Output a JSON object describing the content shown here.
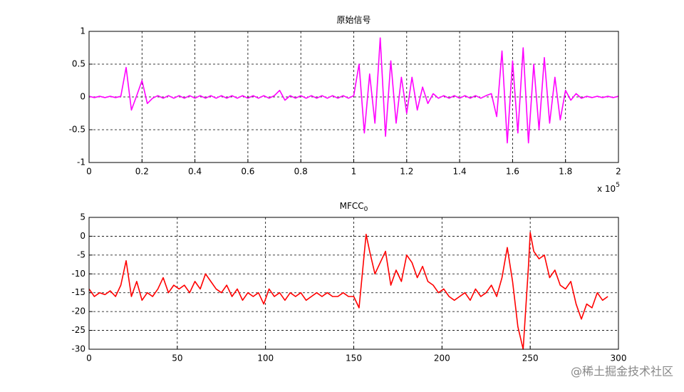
{
  "chart_data": [
    {
      "type": "line",
      "title": "原始信号",
      "x_multiplier": "x 10",
      "x_exponent": "5",
      "xlim": [
        0,
        200000
      ],
      "ylim": [
        -1,
        1
      ],
      "grid": true,
      "xticks": [
        0,
        {
          "value": 20000,
          "label": "0.2"
        },
        {
          "value": 40000,
          "label": "0.4"
        },
        {
          "value": 60000,
          "label": "0.6"
        },
        {
          "value": 80000,
          "label": "0.8"
        },
        {
          "value": 100000,
          "label": "1"
        },
        {
          "value": 120000,
          "label": "1.2"
        },
        {
          "value": 140000,
          "label": "1.4"
        },
        {
          "value": 160000,
          "label": "1.6"
        },
        {
          "value": 180000,
          "label": "1.8"
        },
        {
          "value": 200000,
          "label": "2"
        }
      ],
      "yticks": [
        -1,
        -0.5,
        0,
        0.5,
        1
      ],
      "x": [
        0,
        2000,
        4000,
        6000,
        8000,
        10000,
        12000,
        14000,
        16000,
        18000,
        20000,
        22000,
        24000,
        26000,
        28000,
        30000,
        32000,
        34000,
        36000,
        38000,
        40000,
        42000,
        44000,
        46000,
        48000,
        50000,
        52000,
        54000,
        56000,
        58000,
        60000,
        62000,
        64000,
        66000,
        68000,
        70000,
        72000,
        74000,
        76000,
        78000,
        80000,
        82000,
        84000,
        86000,
        88000,
        90000,
        92000,
        94000,
        96000,
        98000,
        100000,
        102000,
        104000,
        106000,
        108000,
        110000,
        112000,
        114000,
        116000,
        118000,
        120000,
        122000,
        124000,
        126000,
        128000,
        130000,
        132000,
        134000,
        136000,
        138000,
        140000,
        142000,
        144000,
        146000,
        148000,
        150000,
        152000,
        154000,
        156000,
        158000,
        160000,
        162000,
        164000,
        166000,
        168000,
        170000,
        172000,
        174000,
        176000,
        178000,
        180000,
        182000,
        184000,
        186000,
        188000,
        190000,
        192000,
        194000,
        196000,
        198000,
        200000
      ],
      "series": [
        {
          "name": null,
          "color": "#ff00ff",
          "values": [
            0.01,
            -0.01,
            0.01,
            -0.01,
            0.01,
            -0.01,
            0.01,
            0.45,
            -0.2,
            0.02,
            0.25,
            -0.1,
            -0.02,
            0.02,
            -0.02,
            0.02,
            -0.02,
            0.02,
            -0.02,
            0.02,
            -0.02,
            0.02,
            -0.02,
            0.02,
            -0.02,
            0.02,
            -0.02,
            0.02,
            -0.02,
            0.02,
            -0.02,
            0.02,
            -0.02,
            0.02,
            -0.02,
            0.02,
            0.1,
            -0.05,
            0.02,
            -0.02,
            0.02,
            -0.02,
            0.02,
            -0.02,
            0.02,
            -0.02,
            0.02,
            -0.02,
            0.02,
            -0.02,
            0.02,
            0.5,
            -0.55,
            0.35,
            -0.4,
            0.9,
            -0.6,
            0.55,
            -0.4,
            0.3,
            -0.25,
            0.3,
            -0.2,
            0.15,
            -0.1,
            0.05,
            -0.02,
            0.02,
            -0.02,
            0.02,
            -0.02,
            0.02,
            -0.02,
            0.02,
            -0.02,
            0.02,
            0.05,
            -0.3,
            0.7,
            -0.7,
            0.55,
            -0.55,
            0.75,
            -0.7,
            0.5,
            -0.5,
            0.6,
            -0.4,
            0.3,
            -0.35,
            0.1,
            -0.05,
            0.05,
            -0.02,
            0.01,
            -0.01,
            0.01,
            -0.01,
            0.01,
            -0.01,
            0.01
          ]
        }
      ]
    },
    {
      "type": "line",
      "title": "MFCC",
      "title_subscript": "0",
      "xlim": [
        0,
        300
      ],
      "ylim": [
        -30,
        5
      ],
      "grid": true,
      "xticks": [
        0,
        50,
        100,
        150,
        200,
        250,
        300
      ],
      "yticks": [
        -30,
        -25,
        -20,
        -15,
        -10,
        -5,
        0,
        5
      ],
      "x": [
        0,
        3,
        6,
        9,
        12,
        15,
        18,
        21,
        24,
        27,
        30,
        33,
        36,
        39,
        42,
        45,
        48,
        51,
        54,
        57,
        60,
        63,
        66,
        69,
        72,
        75,
        78,
        81,
        84,
        87,
        90,
        93,
        96,
        99,
        102,
        105,
        108,
        111,
        114,
        117,
        120,
        123,
        126,
        129,
        132,
        135,
        138,
        141,
        144,
        147,
        150,
        153,
        157,
        159,
        162,
        165,
        168,
        171,
        174,
        177,
        180,
        183,
        186,
        189,
        192,
        195,
        198,
        201,
        204,
        207,
        210,
        213,
        216,
        219,
        222,
        225,
        228,
        231,
        234,
        237,
        240,
        243,
        246,
        249,
        250,
        252,
        255,
        258,
        261,
        264,
        267,
        270,
        273,
        276,
        279,
        282,
        285,
        288,
        291,
        294
      ],
      "series": [
        {
          "name": null,
          "color": "#ff0000",
          "values": [
            -14,
            -16,
            -15,
            -15.5,
            -14.5,
            -16,
            -13,
            -6.5,
            -16,
            -12,
            -17,
            -15,
            -16,
            -14,
            -11,
            -15,
            -13,
            -14,
            -13,
            -15,
            -12,
            -14,
            -10,
            -12,
            -14,
            -15,
            -13,
            -16,
            -14,
            -17,
            -15,
            -16,
            -15,
            -18,
            -14,
            -16,
            -15,
            -17,
            -15,
            -16,
            -15,
            -17,
            -16,
            -15,
            -16,
            -15,
            -16,
            -16,
            -15,
            -16,
            -16,
            -19,
            0.5,
            -4,
            -10,
            -7,
            -4,
            -13,
            -9,
            -12,
            -5,
            -7,
            -11,
            -8,
            -12,
            -13,
            -15,
            -14,
            -16,
            -17,
            -16,
            -15,
            -17,
            -14,
            -16,
            -15,
            -13,
            -16,
            -11,
            -3,
            -12,
            -24,
            -30,
            -8,
            1,
            -4,
            -6,
            -5,
            -11,
            -9,
            -13,
            -14,
            -12,
            -18,
            -22,
            -18,
            -19,
            -15,
            -17,
            -16
          ]
        }
      ]
    }
  ],
  "watermark": "@稀土掘金技术社区"
}
